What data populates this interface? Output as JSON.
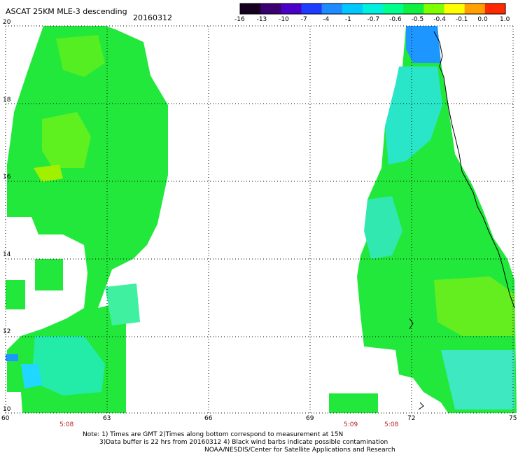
{
  "title": "ASCAT 25KM MLE-3 descending",
  "date": "20160312",
  "colorbar": {
    "labels": [
      "-16",
      "-13",
      "-10",
      "-7",
      "-4",
      "-1",
      "-0.7",
      "-0.6",
      "-0.5",
      "-0.4",
      "-0.1",
      "0.0",
      "1.0"
    ],
    "colors": [
      "#150020",
      "#3a0070",
      "#4b00c8",
      "#1e3cff",
      "#1e8cff",
      "#00c8ff",
      "#00f0e0",
      "#00ff8c",
      "#10f040",
      "#80ff00",
      "#ffff00",
      "#ffa000",
      "#ff2800"
    ]
  },
  "chart_data": {
    "type": "heatmap",
    "xlim": [
      60,
      75
    ],
    "ylim": [
      10,
      20
    ],
    "x_ticks": [
      "60",
      "63",
      "66",
      "69",
      "72",
      "75"
    ],
    "y_ticks": [
      "20",
      "18",
      "16",
      "14",
      "12",
      "10"
    ],
    "time_labels": [
      {
        "text": "5:08",
        "lon": 61.8
      },
      {
        "text": "5:09",
        "lon": 70.2
      },
      {
        "text": "5:08",
        "lon": 71.4
      }
    ]
  },
  "notes": [
    "Note: 1) Times are GMT 2)Times along bottom correspond to measurement at 15N",
    "3)Data buffer is 22 hrs from 20160312 4) Black wind barbs indicate possible contamination",
    "NOAA/NESDIS/Center for Satellite Applications and Research"
  ]
}
